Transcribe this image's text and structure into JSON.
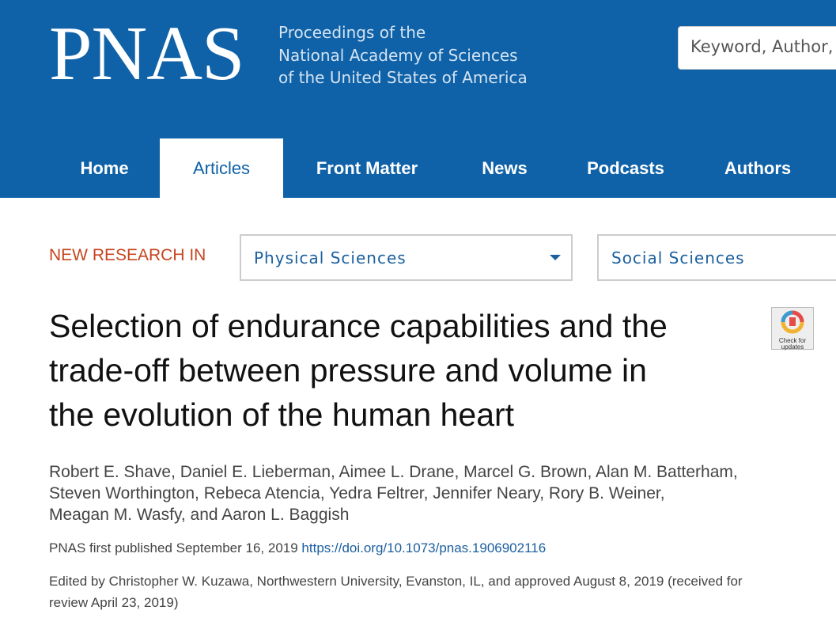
{
  "header": {
    "logo": "PNAS",
    "tagline": [
      "Proceedings of the",
      "National Academy of Sciences",
      "of the United States of America"
    ],
    "search_placeholder": "Keyword, Author,"
  },
  "nav": [
    "Home",
    "Articles",
    "Front Matter",
    "News",
    "Podcasts",
    "Authors"
  ],
  "new_research": {
    "label": "NEW RESEARCH IN",
    "options": [
      "Physical Sciences",
      "Social Sciences"
    ]
  },
  "badge": {
    "lines": [
      "Check for",
      "updates"
    ]
  },
  "article": {
    "title_lines": [
      "Selection of endurance capabilities and the",
      "trade-off between pressure and volume in",
      "the evolution of the human heart"
    ],
    "author_lines": [
      "Robert E. Shave, Daniel E. Lieberman, Aimee L. Drane, Marcel G. Brown, Alan M. Batterham,",
      "Steven Worthington, Rebeca Atencia, Yedra Feltrer, Jennifer Neary, Rory B. Weiner,",
      "Meagan M. Wasfy, and Aaron L. Baggish"
    ],
    "published": "PNAS first published September 16, 2019",
    "doi": "https://doi.org/10.1073/pnas.1906902116",
    "edited_lines": [
      "Edited by Christopher W. Kuzawa, Northwestern University, Evanston, IL, and approved August 8, 2019 (received for",
      "review April 23, 2019)"
    ]
  }
}
